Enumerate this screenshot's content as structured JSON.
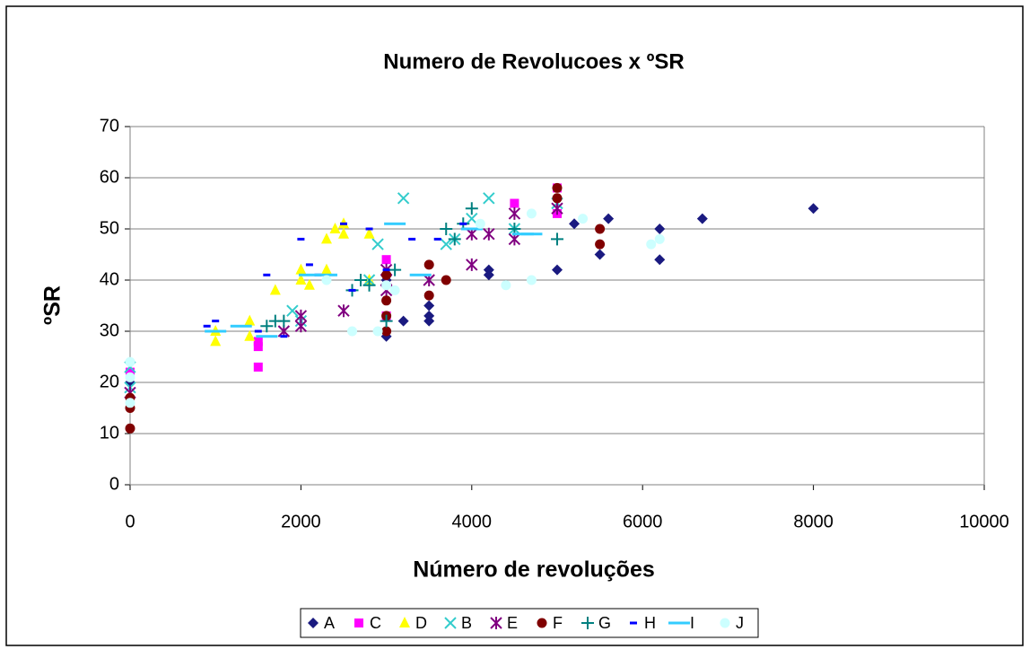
{
  "chart_data": {
    "type": "scatter",
    "title": "Numero de Revolucoes x ºSR",
    "x_label": "Número de revoluções",
    "y_label": "ºSR",
    "xlim": [
      0,
      10000
    ],
    "xticks": [
      0,
      2000,
      4000,
      6000,
      8000,
      10000
    ],
    "ylim": [
      0,
      70
    ],
    "yticks": [
      0,
      10,
      20,
      30,
      40,
      50,
      60,
      70
    ],
    "grid": true,
    "legend": "bottom",
    "series": [
      {
        "name": "A",
        "color": "#1a1a80",
        "marker": "diamond",
        "x": [
          0,
          0,
          0,
          3000,
          3000,
          3200,
          3500,
          3500,
          3500,
          4200,
          4200,
          5000,
          5200,
          5500,
          5600,
          6200,
          6200,
          6700,
          8000
        ],
        "values": [
          17,
          20,
          22,
          29,
          40,
          32,
          32,
          33,
          35,
          41,
          42,
          42,
          51,
          45,
          52,
          44,
          50,
          52,
          54
        ]
      },
      {
        "name": "C",
        "color": "#ff00ff",
        "marker": "square",
        "x": [
          0,
          1500,
          1500,
          1500,
          3000,
          3000,
          4500,
          5000,
          5000
        ],
        "values": [
          22,
          23,
          27,
          28,
          44,
          33,
          55,
          53,
          58
        ]
      },
      {
        "name": "D",
        "color": "#ffff00",
        "marker": "triangle",
        "x": [
          1000,
          1000,
          1400,
          1400,
          1700,
          2000,
          2000,
          2100,
          2300,
          2300,
          2400,
          2500,
          2500,
          2800,
          2800
        ],
        "values": [
          28,
          30,
          29,
          32,
          38,
          40,
          42,
          39,
          48,
          42,
          50,
          49,
          51,
          49,
          40
        ]
      },
      {
        "name": "B",
        "color": "#33cccc",
        "marker": "x",
        "x": [
          0,
          0,
          1900,
          2000,
          2800,
          2900,
          3200,
          3700,
          3800,
          4000,
          4200,
          4500,
          5000
        ],
        "values": [
          19,
          23,
          34,
          32,
          40,
          47,
          56,
          47,
          48,
          52,
          56,
          50,
          55
        ]
      },
      {
        "name": "E",
        "color": "#800080",
        "marker": "star",
        "x": [
          0,
          1800,
          2000,
          2000,
          2500,
          3000,
          3000,
          3000,
          3500,
          4000,
          4000,
          4200,
          4500,
          4500,
          5000
        ],
        "values": [
          18,
          30,
          31,
          33,
          34,
          38,
          40,
          42,
          40,
          43,
          49,
          49,
          48,
          53,
          54
        ]
      },
      {
        "name": "F",
        "color": "#800000",
        "marker": "circle",
        "x": [
          0,
          0,
          0,
          3000,
          3000,
          3000,
          3000,
          3500,
          3500,
          3700,
          5000,
          5000,
          5500,
          5500
        ],
        "values": [
          11,
          15,
          17,
          30,
          33,
          36,
          41,
          37,
          43,
          40,
          56,
          58,
          47,
          50
        ]
      },
      {
        "name": "G",
        "color": "#008080",
        "marker": "plus",
        "x": [
          1600,
          1700,
          1800,
          2600,
          2700,
          2800,
          3000,
          3100,
          3700,
          3800,
          3900,
          4000,
          4500,
          5000
        ],
        "values": [
          31,
          32,
          32,
          38,
          40,
          39,
          32,
          42,
          50,
          48,
          51,
          54,
          50,
          48
        ]
      },
      {
        "name": "H",
        "color": "#0000ff",
        "marker": "dash",
        "x": [
          1000,
          900,
          1500,
          1600,
          1800,
          2000,
          2100,
          2500,
          2600,
          2200,
          2800,
          3300,
          3600,
          3900,
          3000
        ],
        "values": [
          32,
          31,
          30,
          41,
          29,
          48,
          43,
          51,
          38,
          41,
          50,
          48,
          48,
          51,
          42
        ]
      },
      {
        "name": "I",
        "color": "#33ccff",
        "marker": "longdash",
        "x": [
          1000,
          1300,
          1600,
          2100,
          2300,
          3100,
          3400,
          4000,
          4600,
          4700
        ],
        "values": [
          30,
          31,
          29,
          41,
          41,
          51,
          41,
          50,
          49,
          49
        ]
      },
      {
        "name": "J",
        "color": "#ccffff",
        "marker": "dot",
        "x": [
          0,
          0,
          0,
          2300,
          2600,
          2900,
          3000,
          3100,
          4100,
          4400,
          4700,
          4700,
          5300,
          6100,
          6200
        ],
        "values": [
          16,
          21,
          24,
          40,
          30,
          30,
          39,
          38,
          51,
          39,
          40,
          53,
          52,
          47,
          48
        ]
      }
    ]
  }
}
